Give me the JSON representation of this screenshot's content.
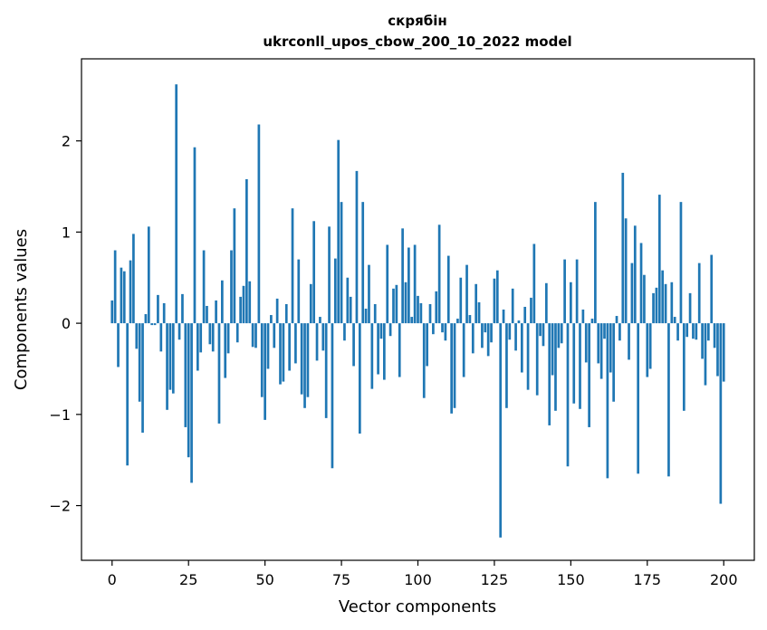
{
  "chart_data": {
    "type": "bar",
    "title_line1": "скрябін",
    "title_line2": "ukrconll_upos_cbow_200_10_2022 model",
    "xlabel": "Vector components",
    "ylabel": "Components values",
    "xlim": [
      -10,
      210
    ],
    "ylim": [
      -2.6,
      2.9
    ],
    "xticks": [
      0,
      25,
      50,
      75,
      100,
      125,
      150,
      175,
      200
    ],
    "yticks": [
      -2,
      -1,
      0,
      1,
      2
    ],
    "ytick_labels": [
      "−2",
      "−1",
      "0",
      "1",
      "2"
    ],
    "bar_color": "#1f77b4",
    "grid": false,
    "values": [
      0.25,
      0.8,
      -0.48,
      0.61,
      0.57,
      -1.56,
      0.69,
      0.98,
      -0.28,
      -0.86,
      -1.2,
      0.1,
      1.06,
      -0.02,
      -0.02,
      0.31,
      -0.31,
      0.22,
      -0.95,
      -0.73,
      -0.77,
      2.62,
      -0.18,
      0.32,
      -1.14,
      -1.47,
      -1.75,
      1.93,
      -0.52,
      -0.32,
      0.8,
      0.19,
      -0.23,
      -0.31,
      0.25,
      -1.1,
      0.47,
      -0.6,
      -0.33,
      0.8,
      1.26,
      -0.21,
      0.29,
      0.41,
      1.58,
      0.46,
      -0.26,
      -0.27,
      2.18,
      -0.81,
      -1.06,
      -0.5,
      0.09,
      -0.27,
      0.27,
      -0.67,
      -0.64,
      0.21,
      -0.52,
      1.26,
      -0.44,
      0.7,
      -0.78,
      -0.93,
      -0.81,
      0.43,
      1.12,
      -0.41,
      0.07,
      -0.3,
      -1.04,
      1.06,
      -1.59,
      0.71,
      2.01,
      1.33,
      -0.19,
      0.5,
      0.29,
      -0.47,
      1.67,
      -1.21,
      1.33,
      0.16,
      0.64,
      -0.72,
      0.21,
      -0.56,
      -0.17,
      -0.62,
      0.86,
      -0.14,
      0.38,
      0.42,
      -0.59,
      1.04,
      0.45,
      0.83,
      0.07,
      0.86,
      0.3,
      0.22,
      -0.82,
      -0.47,
      0.21,
      -0.12,
      0.35,
      1.08,
      -0.1,
      -0.19,
      0.74,
      -0.99,
      -0.93,
      0.05,
      0.5,
      -0.59,
      0.64,
      0.09,
      -0.33,
      0.43,
      0.23,
      -0.27,
      -0.1,
      -0.36,
      -0.21,
      0.49,
      0.58,
      -2.35,
      0.15,
      -0.93,
      -0.18,
      0.38,
      -0.3,
      0.03,
      -0.54,
      0.18,
      -0.73,
      0.28,
      0.87,
      -0.79,
      -0.14,
      -0.25,
      0.44,
      -1.12,
      -0.57,
      -0.96,
      -0.27,
      -0.22,
      0.7,
      -1.57,
      0.45,
      -0.88,
      0.7,
      -0.94,
      0.15,
      -0.43,
      -1.14,
      0.05,
      1.33,
      -0.44,
      -0.61,
      -0.17,
      -1.7,
      -0.54,
      -0.86,
      0.08,
      -0.19,
      1.65,
      1.15,
      -0.4,
      0.66,
      1.07,
      -1.65,
      0.88,
      0.53,
      -0.59,
      -0.5,
      0.33,
      0.39,
      1.41,
      0.58,
      0.43,
      -1.68,
      0.45,
      0.07,
      -0.19,
      1.33,
      -0.96,
      -0.15,
      0.33,
      -0.17,
      -0.18,
      0.66,
      -0.39,
      -0.68,
      -0.19,
      0.75,
      -0.27,
      -0.58,
      -1.98,
      -0.64
    ]
  }
}
